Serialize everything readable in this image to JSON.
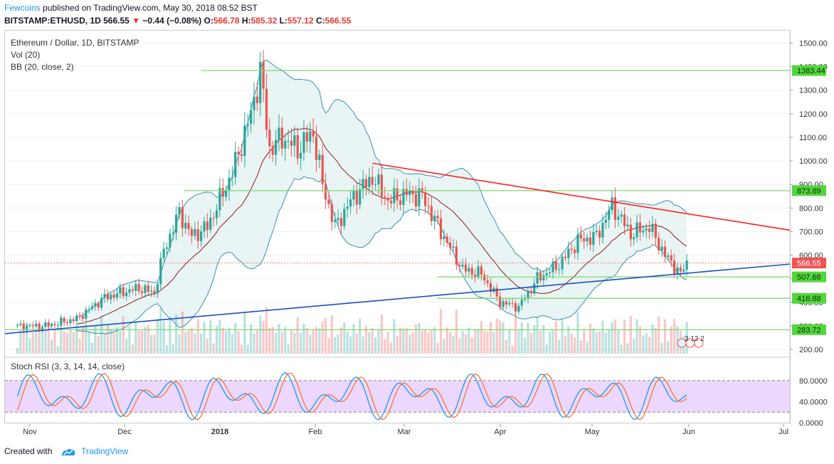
{
  "header": {
    "author": "Fewcoins",
    "published_text": "published on TradingView.com, May 30, 2018 08:52 BST",
    "symbol": "BITSTAMP:ETHUSD, 1D",
    "last": "566.55",
    "change_arrow": "▼",
    "change": "−0.44 (−0.08%)",
    "o_label": "O:",
    "o_value": "566.78",
    "h_label": "H:",
    "h_value": "585.32",
    "l_label": "L:",
    "l_value": "557.12",
    "c_label": "C:",
    "c_value": "566.55"
  },
  "legend": {
    "title": "Ethereum / Dollar, 1D, BITSTAMP",
    "vol": "Vol (20)",
    "bb": "BB (20, close, 2)",
    "stoch": "Stoch RSI (3, 3, 14, 14, close)"
  },
  "events_label": "3 12 2",
  "footer": {
    "created_with": "Created with",
    "brand": "TradingView"
  },
  "colors": {
    "up": "#26a69a",
    "down": "#ef5350",
    "level_line": "#7bd96b",
    "level_bg": "#52d63d",
    "trend_down": "#ff2020",
    "trend_up": "#1e4fc4",
    "bb_band": "#3a8fb3",
    "bb_mid": "#8b1a1a",
    "rsi_k": "#2196f3",
    "rsi_d": "#f4772e",
    "rsi_band": "#e6c9ff",
    "last_price_bg": "#ef5350"
  },
  "chart_data": {
    "type": "candlestick",
    "x_ticks": [
      "Nov",
      "Dec",
      "2018",
      "Feb",
      "Mar",
      "Apr",
      "May",
      "Jun",
      "Jul"
    ],
    "y_ticks": [
      "1500.00",
      "1400.00",
      "1300.00",
      "1200.00",
      "1100.00",
      "1000.00",
      "900.00",
      "800.00",
      "700.00",
      "600.00",
      "500.00",
      "400.00",
      "300.00",
      "200.00"
    ],
    "ylim": [
      200,
      1500
    ],
    "levels": [
      1383.44,
      873.89,
      507.68,
      416.88,
      283.72
    ],
    "level_labels": [
      "1383.44",
      "873.89",
      "507.68",
      "416.88",
      "283.72"
    ],
    "last_price": 566.55,
    "last_price_label": "566.55",
    "close_path": [
      {
        "d": "2017-10-27",
        "v": 298
      },
      {
        "d": "2017-11-05",
        "v": 300
      },
      {
        "d": "2017-11-15",
        "v": 330
      },
      {
        "d": "2017-11-24",
        "v": 420
      },
      {
        "d": "2017-11-29",
        "v": 440
      },
      {
        "d": "2017-12-05",
        "v": 460
      },
      {
        "d": "2017-12-10",
        "v": 440
      },
      {
        "d": "2017-12-13",
        "v": 620
      },
      {
        "d": "2017-12-18",
        "v": 780
      },
      {
        "d": "2017-12-22",
        "v": 680
      },
      {
        "d": "2017-12-27",
        "v": 720
      },
      {
        "d": "2018-01-04",
        "v": 950
      },
      {
        "d": "2018-01-10",
        "v": 1200
      },
      {
        "d": "2018-01-13",
        "v": 1380
      },
      {
        "d": "2018-01-16",
        "v": 1050
      },
      {
        "d": "2018-01-20",
        "v": 1100
      },
      {
        "d": "2018-01-25",
        "v": 1050
      },
      {
        "d": "2018-01-30",
        "v": 1120
      },
      {
        "d": "2018-02-02",
        "v": 900
      },
      {
        "d": "2018-02-06",
        "v": 720
      },
      {
        "d": "2018-02-12",
        "v": 850
      },
      {
        "d": "2018-02-18",
        "v": 930
      },
      {
        "d": "2018-02-23",
        "v": 830
      },
      {
        "d": "2018-03-01",
        "v": 860
      },
      {
        "d": "2018-03-06",
        "v": 850
      },
      {
        "d": "2018-03-12",
        "v": 700
      },
      {
        "d": "2018-03-19",
        "v": 540
      },
      {
        "d": "2018-03-25",
        "v": 520
      },
      {
        "d": "2018-03-31",
        "v": 400
      },
      {
        "d": "2018-04-06",
        "v": 380
      },
      {
        "d": "2018-04-12",
        "v": 500
      },
      {
        "d": "2018-04-19",
        "v": 560
      },
      {
        "d": "2018-04-25",
        "v": 660
      },
      {
        "d": "2018-05-01",
        "v": 680
      },
      {
        "d": "2018-05-06",
        "v": 810
      },
      {
        "d": "2018-05-12",
        "v": 690
      },
      {
        "d": "2018-05-18",
        "v": 720
      },
      {
        "d": "2018-05-23",
        "v": 600
      },
      {
        "d": "2018-05-28",
        "v": 520
      },
      {
        "d": "2018-05-30",
        "v": 566.55
      }
    ],
    "rsi": {
      "y_ticks": [
        "80.0000",
        "40.0000",
        "0.0000"
      ],
      "ylim": [
        0,
        100
      ],
      "upper": 80,
      "lower": 20
    }
  }
}
